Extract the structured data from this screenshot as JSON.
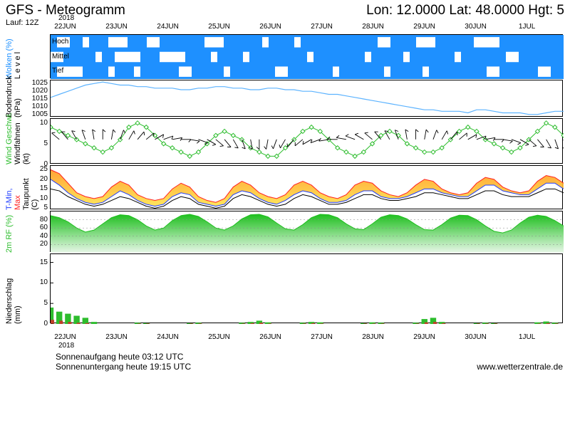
{
  "header": {
    "title_left": "GFS - Meteogramm",
    "title_right": "Lon: 12.0000 Lat: 48.0000 Hgt: 5",
    "run_line": "Lauf: 12Z"
  },
  "xaxis": {
    "year": "2018",
    "dates": [
      "22JUN",
      "23JUN",
      "24JUN",
      "25JUN",
      "26JUN",
      "27JUN",
      "28JUN",
      "29JUN",
      "30JUN",
      "1JUL"
    ],
    "n_slots": 10
  },
  "footer": {
    "sunrise": "Sonnenaufgang heute 03:12 UTC",
    "sunset": "Sonnenuntergang heute 19:15 UTC",
    "credit": "www.wetterzentrale.de"
  },
  "colors": {
    "sky_blue": "#1e90ff",
    "cloud_white": "#ffffff",
    "pressure_line": "#5cb3ff",
    "wind_line": "#2dbd2d",
    "wind_marker": "#2dbd2d",
    "barb": "#000000",
    "tmin_line": "#1e3cff",
    "tmax_line": "#ff2020",
    "dewpt_line": "#000000",
    "temp_band_top": "#ff9a1f",
    "temp_band_bot": "#ffe24a",
    "rh_fill_top": "#1fbf1f",
    "rh_fill_bot": "#e8f7e8",
    "precip_g": "#2dbd2d",
    "precip_r": "#c04028",
    "grid": "#e0e0e0"
  },
  "panels": {
    "clouds": {
      "height": 62,
      "ylabel": "Wolken (%)",
      "ylabel_color": "#1e90ff",
      "level_sub": "L e v e l",
      "levels": [
        "Hoch",
        "Mittel",
        "Tief"
      ],
      "blocks": {
        "hoch": [
          [
            1,
            3
          ],
          [
            5,
            6
          ],
          [
            9,
            12
          ],
          [
            15,
            17
          ],
          [
            24,
            27
          ],
          [
            33,
            34
          ],
          [
            38,
            39
          ],
          [
            51,
            53
          ],
          [
            57,
            60
          ],
          [
            66,
            70
          ]
        ],
        "mittel": [
          [
            0,
            2
          ],
          [
            7,
            8
          ],
          [
            10,
            14
          ],
          [
            17,
            21
          ],
          [
            25,
            26
          ],
          [
            30,
            31
          ],
          [
            40,
            41
          ],
          [
            49,
            50
          ],
          [
            55,
            56
          ],
          [
            63,
            64
          ],
          [
            71,
            73
          ]
        ],
        "tief": [
          [
            1,
            5
          ],
          [
            9,
            10
          ],
          [
            13,
            14
          ],
          [
            20,
            22
          ],
          [
            27,
            28
          ],
          [
            35,
            37
          ],
          [
            44,
            45
          ],
          [
            52,
            53
          ],
          [
            58,
            59
          ],
          [
            68,
            70
          ],
          [
            76,
            78
          ]
        ]
      },
      "slots": 80
    },
    "pressure": {
      "height": 52,
      "ylabel": "Bodendruck",
      "unit": "(hPa)",
      "ylim": [
        1003,
        1027
      ],
      "yticks": [
        1005,
        1010,
        1015,
        1020,
        1025
      ],
      "series": [
        1016,
        1018,
        1020,
        1022,
        1024,
        1025,
        1026,
        1025,
        1024,
        1024,
        1023,
        1023,
        1022,
        1022,
        1022,
        1021,
        1021,
        1022,
        1022,
        1023,
        1023,
        1022,
        1022,
        1021,
        1021,
        1022,
        1022,
        1021,
        1021,
        1020,
        1020,
        1019,
        1018,
        1018,
        1017,
        1016,
        1015,
        1014,
        1013,
        1012,
        1011,
        1010,
        1009,
        1008,
        1008,
        1007,
        1007,
        1007,
        1006,
        1008,
        1008,
        1007,
        1006,
        1006,
        1006,
        1005,
        1005,
        1006,
        1007,
        1007
      ]
    },
    "wind": {
      "height": 64,
      "ylabel1": "Wind Geschwi.",
      "ylabel1_color": "#2dbd2d",
      "ylabel2": "Windfahnen",
      "unit": "(kt)",
      "ylim": [
        0,
        11
      ],
      "yticks": [
        0,
        5,
        10
      ],
      "speed": [
        9,
        8,
        7,
        6,
        5,
        4,
        3,
        4,
        6,
        9,
        10,
        9,
        7,
        5,
        4,
        3,
        2,
        3,
        5,
        7,
        8,
        7,
        6,
        4,
        3,
        2,
        2,
        4,
        6,
        8,
        9,
        8,
        6,
        4,
        3,
        2,
        3,
        5,
        7,
        8,
        7,
        5,
        4,
        3,
        3,
        4,
        6,
        8,
        9,
        8,
        6,
        5,
        4,
        3,
        4,
        6,
        8,
        10,
        9,
        7
      ],
      "barb_dirs": [
        300,
        310,
        320,
        330,
        340,
        350,
        0,
        10,
        20,
        30,
        40,
        50,
        60,
        70,
        80,
        90,
        100,
        110,
        120,
        130,
        140,
        150,
        160,
        170,
        180,
        190,
        200,
        210,
        220,
        230,
        240,
        250,
        260,
        270,
        280,
        290,
        300,
        310,
        320,
        330,
        340,
        350,
        0,
        10,
        20,
        30,
        40,
        50,
        60,
        70,
        80,
        90,
        100,
        110,
        120,
        130,
        140,
        150,
        160,
        170
      ]
    },
    "temp": {
      "height": 62,
      "ylabel1": "T-Min,",
      "ylabel1_color": "#1e3cff",
      "ylabel2": "Max",
      "ylabel2_color": "#ff2020",
      "ylabel3": "Taupunkt",
      "unit": "(C)",
      "ylim": [
        4,
        27
      ],
      "yticks": [
        5,
        10,
        15,
        20,
        25
      ],
      "tmax": [
        25,
        23,
        18,
        13,
        11,
        10,
        11,
        16,
        19,
        17,
        12,
        10,
        9,
        10,
        15,
        18,
        16,
        11,
        9,
        8,
        10,
        16,
        19,
        17,
        13,
        11,
        10,
        12,
        17,
        19,
        17,
        13,
        11,
        10,
        12,
        17,
        19,
        18,
        14,
        12,
        11,
        13,
        17,
        20,
        19,
        15,
        13,
        12,
        13,
        18,
        21,
        20,
        16,
        14,
        13,
        14,
        19,
        22,
        21,
        18
      ],
      "tmin": [
        20,
        17,
        13,
        10,
        8,
        7,
        8,
        11,
        14,
        12,
        9,
        7,
        6,
        7,
        11,
        13,
        12,
        8,
        7,
        6,
        7,
        12,
        14,
        13,
        10,
        8,
        7,
        9,
        12,
        14,
        13,
        10,
        8,
        8,
        9,
        12,
        14,
        14,
        11,
        10,
        10,
        11,
        13,
        15,
        15,
        13,
        12,
        11,
        11,
        14,
        17,
        17,
        14,
        13,
        12,
        12,
        15,
        18,
        18,
        15
      ],
      "dewpt": [
        15,
        14,
        11,
        9,
        7,
        6,
        7,
        9,
        11,
        10,
        8,
        6,
        5,
        6,
        9,
        11,
        10,
        7,
        6,
        5,
        6,
        10,
        12,
        11,
        9,
        7,
        6,
        7,
        10,
        12,
        11,
        9,
        7,
        7,
        8,
        10,
        12,
        12,
        10,
        9,
        9,
        10,
        11,
        13,
        13,
        12,
        11,
        10,
        10,
        12,
        14,
        14,
        12,
        11,
        11,
        11,
        13,
        15,
        15,
        13
      ]
    },
    "rh": {
      "height": 58,
      "ylabel": "2m RF (%)",
      "ylabel_color": "#2dbd2d",
      "ylim": [
        0,
        100
      ],
      "yticks": [
        20,
        40,
        60,
        80
      ],
      "series": [
        90,
        85,
        75,
        60,
        50,
        55,
        70,
        85,
        92,
        90,
        80,
        65,
        55,
        60,
        78,
        90,
        93,
        88,
        75,
        60,
        55,
        65,
        82,
        92,
        93,
        87,
        72,
        58,
        55,
        68,
        85,
        93,
        92,
        85,
        70,
        58,
        56,
        70,
        86,
        92,
        90,
        82,
        68,
        56,
        55,
        68,
        84,
        91,
        90,
        80,
        65,
        52,
        48,
        55,
        72,
        86,
        91,
        88,
        78,
        65
      ]
    },
    "precip": {
      "height": 98,
      "ylabel": "Niederschlag",
      "unit": "(mm)",
      "ylim": [
        0,
        17
      ],
      "yticks": [
        0,
        5,
        10,
        15
      ],
      "green": [
        4,
        3,
        2.5,
        2,
        1.5,
        0.5,
        0,
        0,
        0,
        0,
        0.3,
        0.2,
        0,
        0,
        0,
        0,
        0.2,
        0.3,
        0,
        0,
        0,
        0,
        0.3,
        0.5,
        0.8,
        0.4,
        0,
        0,
        0,
        0.3,
        0.5,
        0.4,
        0,
        0,
        0,
        0,
        0.2,
        0.4,
        0.3,
        0,
        0,
        0,
        0.3,
        1.2,
        1.5,
        0.5,
        0,
        0,
        0,
        0.2,
        0.3,
        0.2,
        0,
        0,
        0,
        0,
        0.4,
        0.6,
        0.3,
        0
      ],
      "red": [
        1,
        0.8,
        0.5,
        0.3,
        0.2,
        0,
        0,
        0,
        0,
        0,
        0.1,
        0.1,
        0,
        0,
        0,
        0,
        0.1,
        0.1,
        0,
        0,
        0,
        0,
        0.1,
        0.2,
        0.3,
        0.1,
        0,
        0,
        0,
        0.1,
        0.2,
        0.1,
        0,
        0,
        0,
        0,
        0.1,
        0.1,
        0.1,
        0,
        0,
        0,
        0.1,
        0.4,
        0.5,
        0.2,
        0,
        0,
        0,
        0.1,
        0.1,
        0.1,
        0,
        0,
        0,
        0,
        0.1,
        0.2,
        0.1,
        0
      ]
    }
  }
}
